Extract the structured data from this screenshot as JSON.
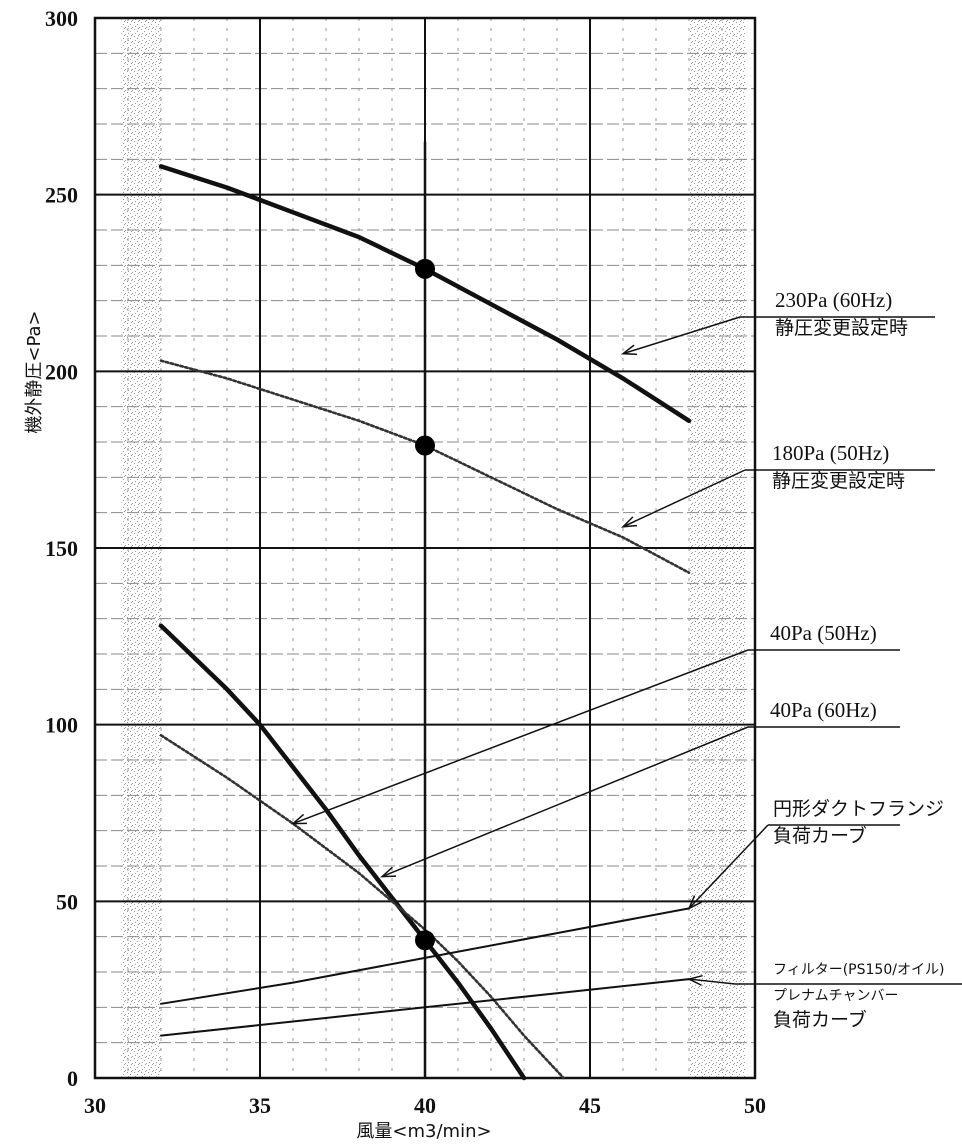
{
  "chart_data": {
    "type": "line",
    "title": "",
    "xlabel": "風量<m3/min>",
    "ylabel": "機外静圧<Pa>",
    "xlim": [
      30,
      50
    ],
    "ylim": [
      0,
      300
    ],
    "x_ticks": [
      "30",
      "35",
      "40",
      "45",
      "50"
    ],
    "y_ticks": [
      "0",
      "50",
      "100",
      "150",
      "200",
      "250",
      "300"
    ],
    "grid": true,
    "series": [
      {
        "name": "230Pa (60Hz) 静圧変更設定時",
        "style": "solid-thick",
        "color": "#111111",
        "x": [
          32,
          34,
          36,
          38,
          40,
          42,
          44,
          46,
          48
        ],
        "y": [
          258,
          252,
          245,
          238,
          229,
          219,
          209,
          198,
          186
        ]
      },
      {
        "name": "180Pa (50Hz) 静圧変更設定時",
        "style": "dotted",
        "color": "#333333",
        "x": [
          32,
          34,
          36,
          38,
          40,
          42,
          44,
          46,
          48
        ],
        "y": [
          203,
          198,
          192,
          186,
          179,
          170,
          161,
          153,
          143
        ]
      },
      {
        "name": "40Pa (60Hz)",
        "style": "solid-thick",
        "color": "#111111",
        "x": [
          32,
          34,
          35,
          36,
          37,
          38,
          39,
          40,
          41,
          42,
          43
        ],
        "y": [
          128,
          110,
          100,
          88,
          76,
          63,
          51,
          39,
          27,
          14,
          0
        ]
      },
      {
        "name": "40Pa (50Hz)",
        "style": "dotted",
        "color": "#333333",
        "x": [
          32,
          34,
          36,
          38,
          40,
          41,
          42,
          43,
          44.2
        ],
        "y": [
          97,
          85,
          72,
          58,
          42,
          33,
          23,
          12,
          0
        ]
      },
      {
        "name": "円形ダクトフランジ 負荷カーブ",
        "style": "solid-thin",
        "color": "#111111",
        "x": [
          32,
          36,
          40,
          44,
          48
        ],
        "y": [
          21,
          27,
          34,
          41,
          48
        ]
      },
      {
        "name": "フィルター(PS150/オイル) プレナムチャンバー 負荷カーブ",
        "style": "solid-thin",
        "color": "#111111",
        "x": [
          32,
          36,
          40,
          44,
          48
        ],
        "y": [
          12,
          16,
          20,
          24,
          28
        ]
      }
    ],
    "vertical_line_x": 40,
    "markers": [
      {
        "x": 40,
        "y": 229
      },
      {
        "x": 40,
        "y": 179
      },
      {
        "x": 40,
        "y": 39
      }
    ],
    "annotations": [
      {
        "lines": [
          "230Pa (60Hz)",
          "静圧変更設定時"
        ],
        "target": [
          46,
          205
        ]
      },
      {
        "lines": [
          "180Pa (50Hz)",
          "静圧変更設定時"
        ],
        "target": [
          46,
          156
        ]
      },
      {
        "lines": [
          "40Pa (50Hz)"
        ],
        "target": [
          36,
          72
        ]
      },
      {
        "lines": [
          "40Pa (60Hz)"
        ],
        "target": [
          38.7,
          57
        ]
      },
      {
        "lines": [
          "円形ダクトフランジ",
          "負荷カーブ"
        ],
        "target": [
          48,
          48
        ]
      },
      {
        "lines": [
          "フィルター(PS150/オイル)",
          "プレナムチャンバー",
          "負荷カーブ"
        ],
        "target": [
          48,
          28
        ]
      }
    ]
  }
}
